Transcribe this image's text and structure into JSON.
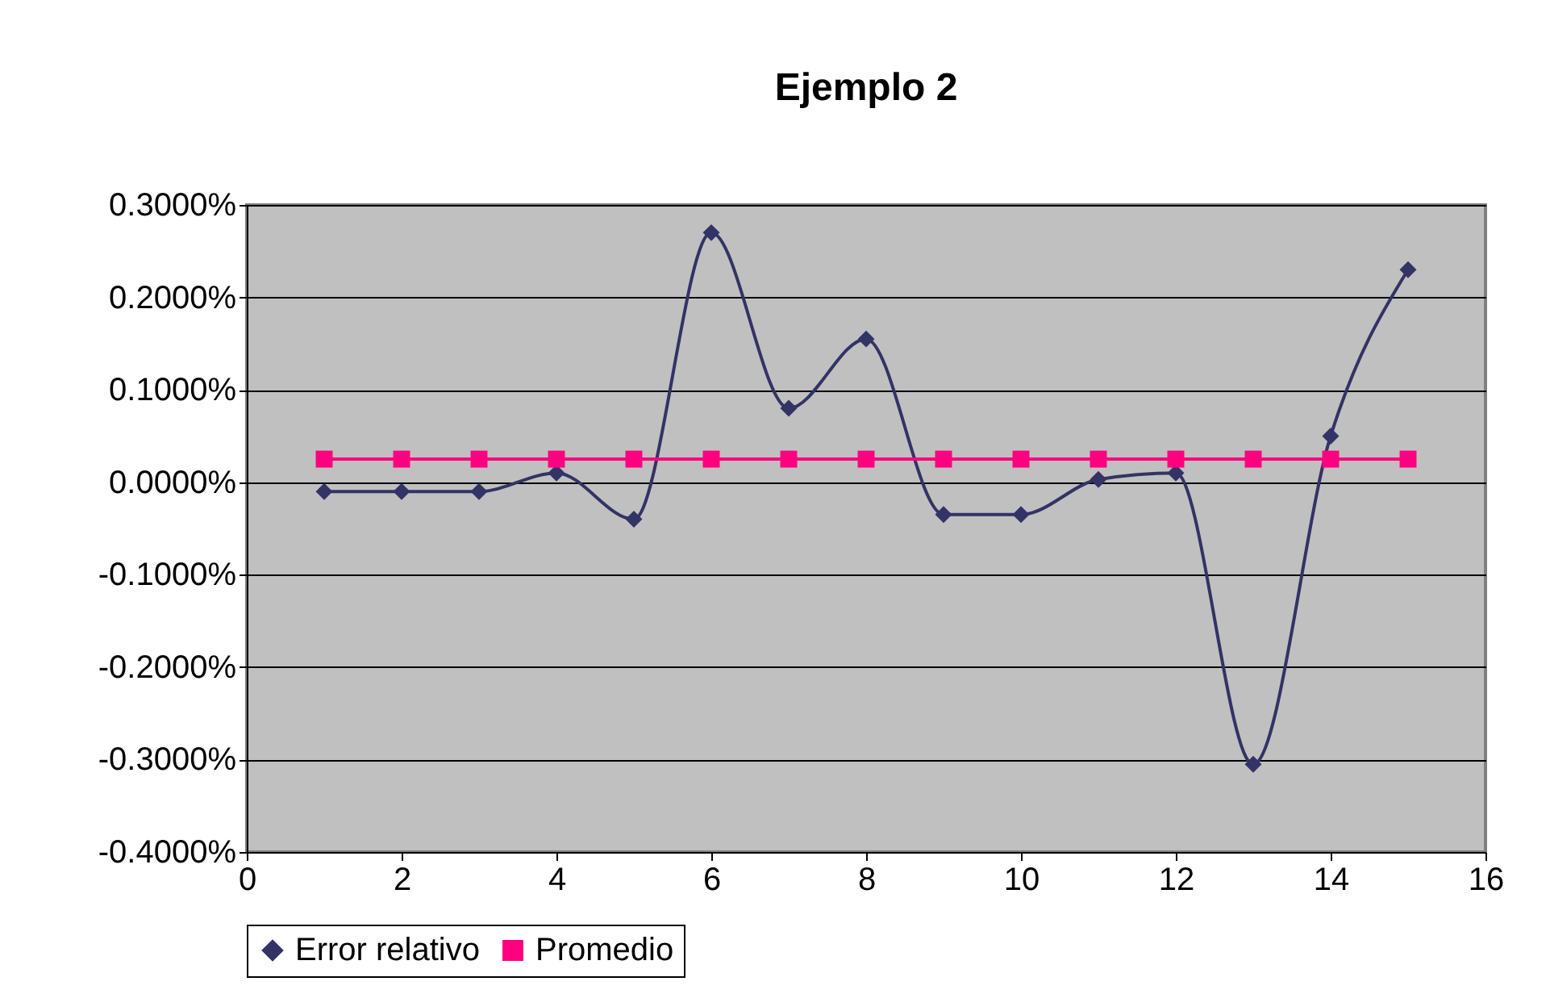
{
  "chart_data": {
    "type": "line",
    "title": "Ejemplo 2",
    "x": [
      1,
      2,
      3,
      4,
      5,
      6,
      7,
      8,
      9,
      10,
      11,
      12,
      13,
      14,
      15
    ],
    "series": [
      {
        "name": "Error relativo",
        "color": "#333366",
        "marker": "diamond",
        "values": [
          -0.01,
          -0.01,
          -0.01,
          0.01,
          -0.04,
          0.27,
          0.08,
          0.155,
          -0.035,
          -0.035,
          0.003,
          0.01,
          -0.305,
          0.05,
          0.23
        ]
      },
      {
        "name": "Promedio",
        "color": "#ff0080",
        "marker": "square",
        "values": [
          0.025,
          0.025,
          0.025,
          0.025,
          0.025,
          0.025,
          0.025,
          0.025,
          0.025,
          0.025,
          0.025,
          0.025,
          0.025,
          0.025,
          0.025
        ]
      }
    ],
    "xlim": [
      0,
      16
    ],
    "xticks": [
      0,
      2,
      4,
      6,
      8,
      10,
      12,
      14,
      16
    ],
    "ylim": [
      -0.4,
      0.3
    ],
    "yticks": [
      {
        "value": -0.4,
        "label": "-0.4000%"
      },
      {
        "value": -0.3,
        "label": "-0.3000%"
      },
      {
        "value": -0.2,
        "label": "-0.2000%"
      },
      {
        "value": -0.1,
        "label": "-0.1000%"
      },
      {
        "value": 0,
        "label": "0.0000%"
      },
      {
        "value": 0.1,
        "label": "0.1000%"
      },
      {
        "value": 0.2,
        "label": "0.2000%"
      },
      {
        "value": 0.3,
        "label": "0.3000%"
      }
    ],
    "grid": "y",
    "legend": "bottom",
    "line_style": "solid"
  }
}
